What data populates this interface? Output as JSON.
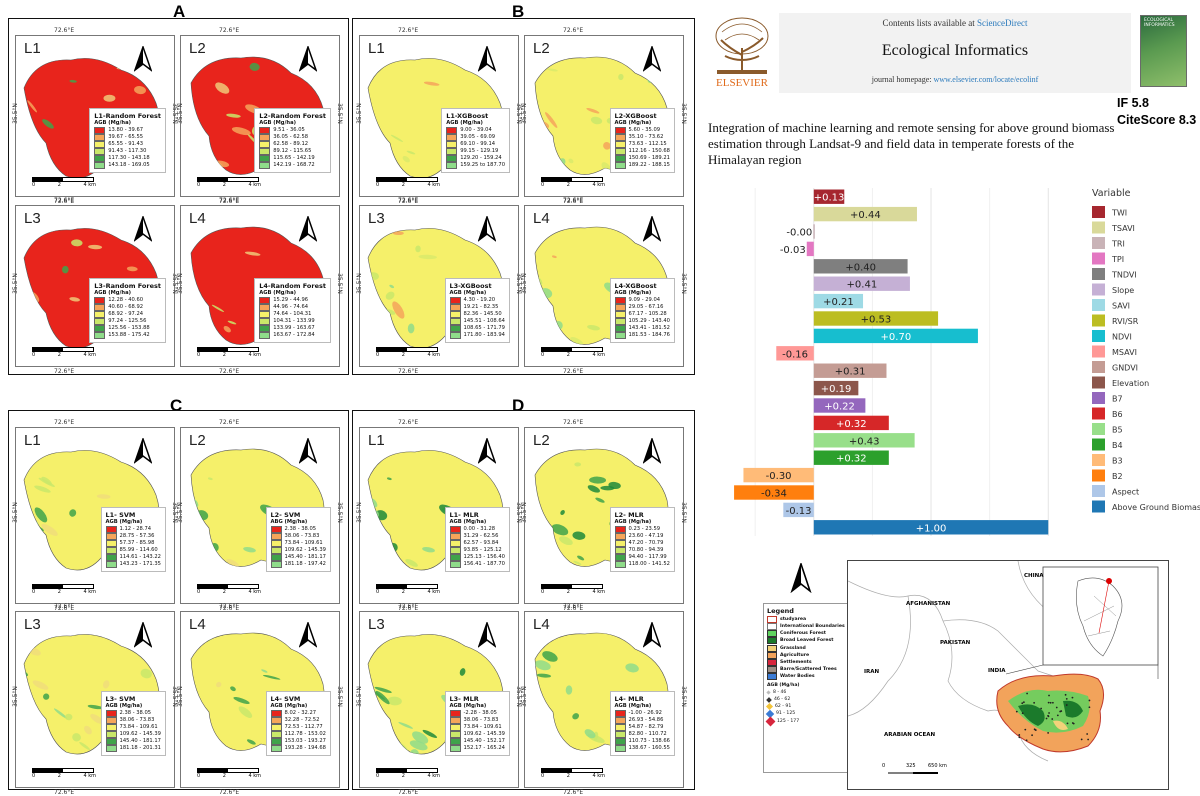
{
  "panels": [
    {
      "letter": "A",
      "model": "Random Forest",
      "cells": [
        {
          "id": "L1",
          "title": "L1-Random Forest",
          "unit": "AGB (Mg/ha)",
          "classes": [
            "13.80 - 39.67",
            "39.67 - 65.55",
            "65.55 - 91.43",
            "91.43 - 117.30",
            "117.30 - 143.18",
            "143.18 - 169.05"
          ]
        },
        {
          "id": "L2",
          "title": "L2-Random Forest",
          "unit": "AGB (Mg/ha)",
          "classes": [
            "9.51 - 36.05",
            "36.05 - 62.58",
            "62.58 - 89.12",
            "89.12 - 115.65",
            "115.65 - 142.19",
            "142.19 - 168.72"
          ]
        },
        {
          "id": "L3",
          "title": "L3-Random Forest",
          "unit": "AGB (Mg/ha)",
          "classes": [
            "12.28 - 40.60",
            "40.60 - 68.92",
            "68.92 - 97.24",
            "97.24 - 125.56",
            "125.56 - 153.88",
            "153.88 - 175.42"
          ]
        },
        {
          "id": "L4",
          "title": "L4-Random Forest",
          "unit": "AGB (Mg/ha)",
          "classes": [
            "15.29 - 44.96",
            "44.96 - 74.64",
            "74.64 - 104.31",
            "104.31 - 133.99",
            "133.99 - 163.67",
            "163.67 - 172.84"
          ]
        }
      ]
    },
    {
      "letter": "B",
      "model": "XGBoost",
      "cells": [
        {
          "id": "L1",
          "title": "L1-XGBoost",
          "unit": "AGB (Mg/ha)",
          "classes": [
            "9.00 - 39.04",
            "39.05 - 69.09",
            "69.10 - 99.14",
            "99.15 - 129.19",
            "129.20 - 159.24",
            "159.25 to 187.70"
          ]
        },
        {
          "id": "L2",
          "title": "L2-XGBoost",
          "unit": "AGB (Mg/ha)",
          "classes": [
            "5.60 - 35.09",
            "35.10 - 73.62",
            "73.63 - 112.15",
            "112.16 - 150.68",
            "150.69 - 189.21",
            "189.22 - 188.15"
          ]
        },
        {
          "id": "L3",
          "title": "L3-XGBoost",
          "unit": "AGB (Mg/ha)",
          "classes": [
            "4.30 - 19.20",
            "19.21 - 82.35",
            "82.36 - 145.50",
            "145.51 - 108.64",
            "108.65 - 171.79",
            "171.80 - 183.94"
          ]
        },
        {
          "id": "L4",
          "title": "L4-XGBoost",
          "unit": "AGB (Mg/ha)",
          "classes": [
            "9.09 - 29.04",
            "29.05 - 67.16",
            "67.17 - 105.28",
            "105.29 - 143.40",
            "143.41 - 181.52",
            "181.53 - 184.76"
          ]
        }
      ]
    },
    {
      "letter": "C",
      "model": "SVM",
      "cells": [
        {
          "id": "L1",
          "title": "L1- SVM",
          "unit": "AGB (Mg/ha)",
          "classes": [
            "1.12 - 28.74",
            "28.75 - 57.36",
            "57.37 - 85.98",
            "85.99 - 114.60",
            "114.61 - 143.22",
            "143.23 - 171.35"
          ]
        },
        {
          "id": "L2",
          "title": "L2- SVM",
          "unit": "ABG (Mg/ha)",
          "classes": [
            "2.38 - 38.05",
            "38.06 - 73.83",
            "73.84 - 109.61",
            "109.62 - 145.39",
            "145.40 - 181.17",
            "181.18 - 197.42"
          ]
        },
        {
          "id": "L3",
          "title": "L3- SVM",
          "unit": "AGB (Mg/ha)",
          "classes": [
            "2.38 - 38.05",
            "38.06 - 73.83",
            "73.84 - 109.61",
            "109.62 - 145.39",
            "145.40 - 181.17",
            "181.18 - 201.31"
          ]
        },
        {
          "id": "L4",
          "title": "L4- SVM",
          "unit": "AGB (Mg/ha)",
          "classes": [
            "8.02 - 32.27",
            "32.28 - 72.52",
            "72.53 - 112.77",
            "112.78 - 153.02",
            "153.03 - 193.27",
            "193.28 - 194.68"
          ]
        }
      ]
    },
    {
      "letter": "D",
      "model": "MLR",
      "cells": [
        {
          "id": "L1",
          "title": "L1- MLR",
          "unit": "AGB (Mg/ha)",
          "classes": [
            "0.00 - 31.28",
            "31.29 - 62.56",
            "62.57 - 93.84",
            "93.85 - 125.12",
            "125.13 - 156.40",
            "156.41 - 187.70"
          ]
        },
        {
          "id": "L2",
          "title": "L2- MLR",
          "unit": "AGB (Mg/ha)",
          "classes": [
            "0.23 - 23.59",
            "23.60 - 47.19",
            "47.20 - 70.79",
            "70.80 - 94.39",
            "94.40 - 117.99",
            "118.00 - 141.52"
          ]
        },
        {
          "id": "L3",
          "title": "L3- MLR",
          "unit": "AGB (Mg/ha)",
          "classes": [
            "-2.28 - 38.05",
            "38.06 - 73.83",
            "73.84 - 109.61",
            "109.62 - 145.39",
            "145.40 - 152.17",
            "152.17 - 165.24"
          ]
        },
        {
          "id": "L4",
          "title": "L4- MLR",
          "unit": "AGB (Mg/ha)",
          "classes": [
            "-1.00 - 26.92",
            "26.93 - 54.86",
            "54.87 - 82.79",
            "82.80 - 110.72",
            "110.73 - 138.66",
            "138.67 - 160.55"
          ]
        }
      ]
    }
  ],
  "map_labels": {
    "lon": "72.6°E",
    "lat": "35.5°N",
    "lat_alt": "35.3°N",
    "lon_alt": "72.5°E",
    "scale": [
      "0",
      "2",
      "4 km"
    ]
  },
  "class_colors": [
    "#e8241c",
    "#f5a55a",
    "#f5f06a",
    "#c9e86a",
    "#3fa34a",
    "#8fdc8a"
  ],
  "journal": {
    "contents": "Contents lists available at ",
    "contents_link": "ScienceDirect",
    "name": "Ecological Informatics",
    "homepage": "journal homepage: ",
    "homepage_link": "www.elsevier.com/locate/ecolinf",
    "publisher": "ELSEVIER",
    "cover_title": "ECOLOGICAL INFORMATICS"
  },
  "metrics": {
    "if": "IF 5.8",
    "citescore": "CiteScore 8.3"
  },
  "paper_title": "Integration of machine learning and remote sensing for above ground biomass estimation through Landsat-9 and field data in temperate forests of the Himalayan region",
  "chart_data": {
    "type": "bar",
    "orientation": "horizontal",
    "xlabel": "Above Ground Biomass",
    "xlim": [
      -0.4,
      1.05
    ],
    "xticks": [
      0.0,
      0.5,
      1.0
    ],
    "xtick_labels": [
      "0.0",
      "0.5",
      "1.0"
    ],
    "legend_title": "Variable",
    "legend_position": "right",
    "grid": true,
    "bars": [
      {
        "variable": "TWI",
        "value": 0.13,
        "label": "+0.13",
        "color": "#a6272f"
      },
      {
        "variable": "TSAVI",
        "value": 0.44,
        "label": "+0.44",
        "color": "#d9d99a"
      },
      {
        "variable": "TRI",
        "value": -0.002,
        "label": "-0.00",
        "color": "#c9b3b7"
      },
      {
        "variable": "TPI",
        "value": -0.03,
        "label": "-0.03",
        "color": "#e377c2"
      },
      {
        "variable": "TNDVI",
        "value": 0.4,
        "label": "+0.40",
        "color": "#7f7f7f"
      },
      {
        "variable": "Slope",
        "value": 0.41,
        "label": "+0.41",
        "color": "#c5b0d5"
      },
      {
        "variable": "SAVI",
        "value": 0.21,
        "label": "+0.21",
        "color": "#9edae5"
      },
      {
        "variable": "RVI/SR",
        "value": 0.53,
        "label": "+0.53",
        "color": "#bcbd22"
      },
      {
        "variable": "NDVI",
        "value": 0.7,
        "label": "+0.70",
        "color": "#17becf"
      },
      {
        "variable": "MSAVI",
        "value": -0.16,
        "label": "-0.16",
        "color": "#ff9896"
      },
      {
        "variable": "GNDVI",
        "value": 0.31,
        "label": "+0.31",
        "color": "#c49c94"
      },
      {
        "variable": "Elevation",
        "value": 0.19,
        "label": "+0.19",
        "color": "#8c564b"
      },
      {
        "variable": "B7",
        "value": 0.22,
        "label": "+0.22",
        "color": "#9467bd"
      },
      {
        "variable": "B6",
        "value": 0.32,
        "label": "+0.32",
        "color": "#d62728"
      },
      {
        "variable": "B5",
        "value": 0.43,
        "label": "+0.43",
        "color": "#98df8a"
      },
      {
        "variable": "B4",
        "value": 0.32,
        "label": "+0.32",
        "color": "#2ca02c"
      },
      {
        "variable": "B3",
        "value": -0.3,
        "label": "-0.30",
        "color": "#ffbb78"
      },
      {
        "variable": "B2",
        "value": -0.34,
        "label": "-0.34",
        "color": "#ff7f0e"
      },
      {
        "variable": "Aspect",
        "value": -0.13,
        "label": "-0.13",
        "color": "#aec7e8"
      },
      {
        "variable": "Above Ground Biomass",
        "value": 1.0,
        "label": "+1.00",
        "color": "#1f77b4"
      }
    ]
  },
  "location_map": {
    "legend_title": "Legend",
    "items": [
      {
        "label": "studyarea",
        "color": "#fff",
        "border": "#c0392b"
      },
      {
        "label": "International Boundaries",
        "color": "#fff",
        "border": "#777"
      },
      {
        "label": "Coniferous Forest",
        "color": "#5fd35f",
        "border": "#333"
      },
      {
        "label": "Broad Leaved Forest",
        "color": "#1b7a2b",
        "border": "#333"
      },
      {
        "label": "Grassland",
        "color": "#f3d27a",
        "border": "#333"
      },
      {
        "label": "Agriculture",
        "color": "#f2a35b",
        "border": "#333"
      },
      {
        "label": "Settlements",
        "color": "#d7263d",
        "border": "#333"
      },
      {
        "label": "Barre/Scattered Trees",
        "color": "#9c8f86",
        "border": "#333"
      },
      {
        "label": "Water Bodies",
        "color": "#3a7bd5",
        "border": "#333"
      }
    ],
    "agb_title": "AGB (Mg/ha)",
    "agb_classes": [
      "8 - 46",
      "46 - 62",
      "62 - 91",
      "91 - 125",
      "125 - 177"
    ],
    "regions": [
      "AFGHANISTAN",
      "PAKISTAN",
      "INDIA",
      "IRAN",
      "CHINA",
      "ARABIAN OCEAN"
    ],
    "scale": [
      "0",
      "325",
      "650 km"
    ]
  }
}
